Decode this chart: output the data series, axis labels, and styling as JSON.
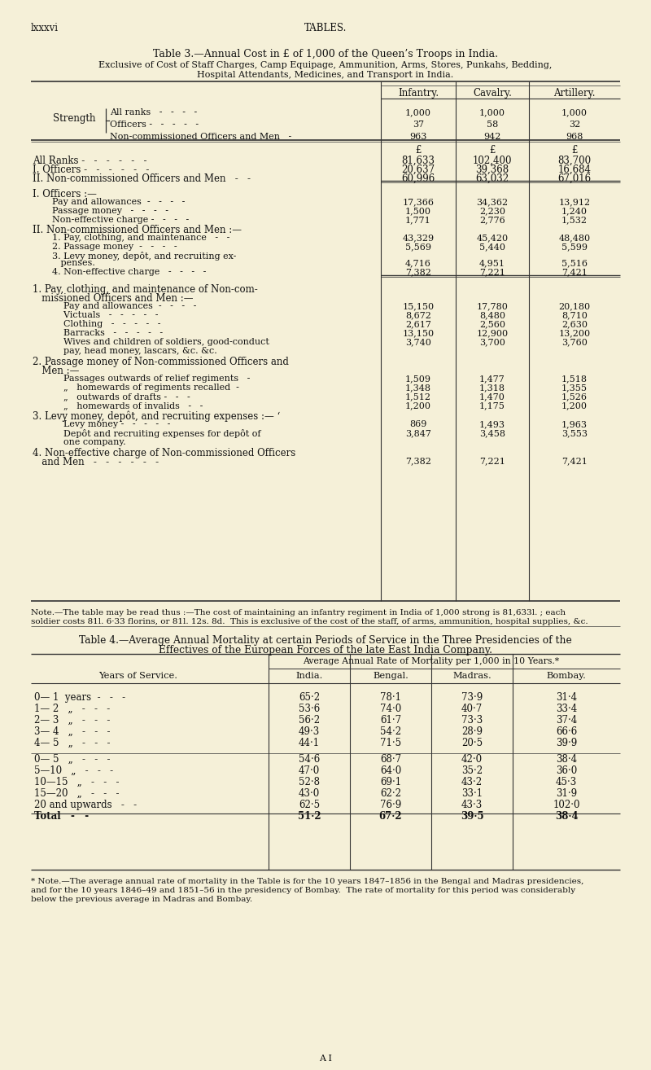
{
  "bg_color": "#f5f0d8",
  "page_label": "lxxxvi",
  "page_center_text": "TABLES.",
  "title1": "Table 3.—Annual Cost in £ of 1,000 of the Queen’s Troops in India.",
  "subtitle1": "Exclusive of Cost of Staff Charges, Camp Equipage, Ammunition, Arms, Stores, Punkahs, Bedding,",
  "subtitle2": "Hospital Attendants, Medicines, and Transport in India.",
  "col_headers": [
    "Infantry.",
    "Cavalry.",
    "Artillery."
  ],
  "strength_label": "Strength",
  "strength_rows": [
    [
      "All ranks   -   -   -   -",
      "1,000",
      "1,000",
      "1,000"
    ],
    [
      "Officers -   -   -   -   -",
      "37",
      "58",
      "32"
    ],
    [
      "Non-commissioned Officers and Men   -",
      "963",
      "942",
      "968"
    ]
  ],
  "pound_sign": "£",
  "summary_rows": [
    [
      "All Ranks -   -   -   -   -   -",
      "81,633",
      "102,400",
      "83,700"
    ],
    [
      "I. Officers -   -   -   -   -   -",
      "20,637",
      "39,368",
      "16,684"
    ],
    [
      "II. Non-commissioned Officers and Men   -   -",
      "60,996",
      "63,032",
      "67,016"
    ]
  ],
  "officers_header": "I. Officers :—",
  "officers_rows": [
    [
      "    Pay and allowances  -   -   -   -",
      "17,366",
      "34,362",
      "13,912"
    ],
    [
      "    Passage money   -   -   -   -",
      "1,500",
      "2,230",
      "1,240"
    ],
    [
      "    Non-effective charge -   -   -   -",
      "1,771",
      "2,776",
      "1,532"
    ]
  ],
  "nco_header": "II. Non-commissioned Officers and Men :—",
  "nco_rows": [
    [
      "    1. Pay, clothing, and maintenance   -   -",
      "43,329",
      "45,420",
      "48,480"
    ],
    [
      "    2. Passage money  -   -   -   -",
      "5,569",
      "5,440",
      "5,599"
    ],
    [
      "    3. Levy money, depôt, and recruiting ex-",
      null,
      null,
      null
    ],
    [
      "       penses.",
      "4,716",
      "4,951",
      "5,516"
    ],
    [
      "    4. Non-effective charge   -   -   -   -",
      "7,382",
      "7,221",
      "7,421"
    ]
  ],
  "detail1_header": "1. Pay, clothing, and maintenance of Non-com-",
  "detail1_header2": "   missioned Officers and Men :—",
  "detail1_rows": [
    [
      "        Pay and allowances  -   -   -   -",
      "15,150",
      "17,780",
      "20,180"
    ],
    [
      "        Victuals   -   -   -   -   -",
      "8,672",
      "8,480",
      "8,710"
    ],
    [
      "        Clothing   -   -   -   -   -",
      "2,617",
      "2,560",
      "2,630"
    ],
    [
      "        Barracks   -   -   -   -   -",
      "13,150",
      "12,900",
      "13,200"
    ],
    [
      "        Wives and children of soldiers, good-conduct",
      "3,740",
      "3,700",
      "3,760"
    ],
    [
      "        pay, head money, lascars, &c. &c.",
      null,
      null,
      null
    ]
  ],
  "detail2_header": "2. Passage money of Non-commissioned Officers and",
  "detail2_header2": "   Men :—",
  "detail2_rows": [
    [
      "        Passages outwards of relief regiments   -",
      "1,509",
      "1,477",
      "1,518"
    ],
    [
      "        „   homewards of regiments recalled  -",
      "1,348",
      "1,318",
      "1,355"
    ],
    [
      "        „   outwards of drafts -   -   -",
      "1,512",
      "1,470",
      "1,526"
    ],
    [
      "        „   homewards of invalids   -   -",
      "1,200",
      "1,175",
      "1,200"
    ]
  ],
  "detail3_header": "3. Levy money, depôt, and recruiting expenses :— ‘",
  "detail3_rows": [
    [
      "        Levy money -   -   -   -   -",
      "869",
      "1,493",
      "1,963"
    ],
    [
      "        Depôt and recruiting expenses for depôt of",
      "3,847",
      "3,458",
      "3,553"
    ],
    [
      "        one company.",
      null,
      null,
      null
    ]
  ],
  "detail4_header": "4. Non-effective charge of Non-commissioned Officers",
  "detail4_header2": "   and Men   -   -   -   -   -   -",
  "detail4_vals": [
    "7,382",
    "7,221",
    "7,421"
  ],
  "note1a": "Note.—The table may be read thus :—The cost of maintaining an infantry regiment in India of 1,000 strong is 81,633l. ; each",
  "note1b": "soldier costs 81l. 6·33 florins, or 81l. 12s. 8d.  This is exclusive of the cost of the staff, of arms, ammunition, hospital supplies, &c.",
  "table4_title1": "Table 4.—Average Annual Mortality at certain Periods of Service in the Three Presidencies of the",
  "table4_title2": "Effectives of the European Forces of the late East India Company.",
  "table4_rate_header": "Average Annual Rate of Mortality per 1,000 in 10 Years.*",
  "table4_years_header": "Years of Service.",
  "table4_col_headers": [
    "India.",
    "Bengal.",
    "Madras.",
    "Bombay."
  ],
  "table4_rows": [
    [
      "0— 1  years  -   -   -",
      "65·2",
      "78·1",
      "73·9",
      "31·4"
    ],
    [
      "1— 2   „   -   -   -",
      "53·6",
      "74·0",
      "40·7",
      "33·4"
    ],
    [
      "2— 3   „   -   -   -",
      "56·2",
      "61·7",
      "73·3",
      "37·4"
    ],
    [
      "3— 4   „   -   -   -",
      "49·3",
      "54·2",
      "28·9",
      "66·6"
    ],
    [
      "4— 5   „   -   -   -",
      "44·1",
      "71·5",
      "20·5",
      "39·9"
    ],
    [
      "0— 5   „   -   -   -",
      "54·6",
      "68·7",
      "42·0",
      "38·4"
    ],
    [
      "5—10   „   -   -   -",
      "47·0",
      "64·0",
      "35·2",
      "36·0"
    ],
    [
      "10—15   „   -   -   -",
      "52·8",
      "69·1",
      "43·2",
      "45·3"
    ],
    [
      "15—20   „   -   -   -",
      "43·0",
      "62·2",
      "33·1",
      "31·9"
    ],
    [
      "20 and upwards   -   -",
      "62·5",
      "76·9",
      "43·3",
      "102·0"
    ],
    [
      "Total   -   -",
      "51·2",
      "67·2",
      "39·5",
      "38·4"
    ]
  ],
  "note2a": "* Note.—The average annual rate of mortality in the Table is for the 10 years 1847–1856 in the Bengal and Madras presidencies,",
  "note2b": "and for the 10 years 1846–49 and 1851–56 in the presidency of Bombay.  The rate of mortality for this period was considerably",
  "note2c": "below the previous average in Madras and Bombay.",
  "bottom_label": "A I"
}
